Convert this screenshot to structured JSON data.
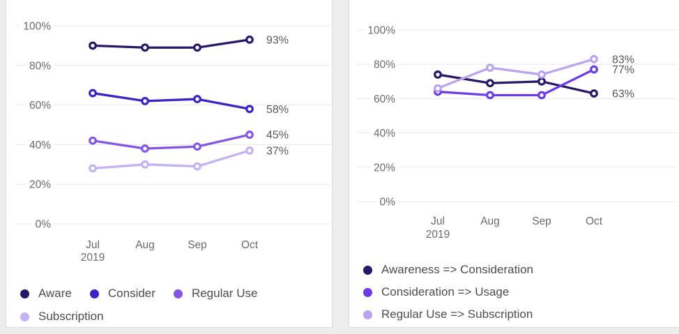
{
  "page": {
    "background": "#ededed",
    "card_background": "#ffffff",
    "card_border": "#dcdcdc",
    "grid_color": "#e8e8e8",
    "axis_text_color": "#6b6b6b",
    "value_label_color": "#595959",
    "legend_text_color": "#4d4d4d"
  },
  "chart_data": [
    {
      "id": "funnel-levels",
      "type": "line",
      "x": [
        "Jul 2019",
        "Aug",
        "Sep",
        "Oct"
      ],
      "x_tick_lines": [
        [
          "Jul",
          "2019"
        ],
        [
          "Aug"
        ],
        [
          "Sep"
        ],
        [
          "Oct"
        ]
      ],
      "ylim": [
        0,
        100
      ],
      "y_ticks": [
        100,
        80,
        60,
        40,
        20,
        0
      ],
      "y_tick_labels": [
        "100%",
        "80%",
        "60%",
        "40%",
        "20%",
        "0%"
      ],
      "grid": true,
      "legend_position": "bottom",
      "series": [
        {
          "name": "Aware",
          "color": "#271766",
          "values": [
            90,
            89,
            89,
            93
          ],
          "end_label": "93%"
        },
        {
          "name": "Consider",
          "color": "#3a25c4",
          "values": [
            66,
            62,
            63,
            58
          ],
          "end_label": "58%"
        },
        {
          "name": "Regular Use",
          "color": "#8456e3",
          "values": [
            42,
            38,
            39,
            45
          ],
          "end_label": "45%"
        },
        {
          "name": "Subscription",
          "color": "#c5b3f1",
          "values": [
            28,
            30,
            29,
            37
          ],
          "end_label": "37%"
        }
      ]
    },
    {
      "id": "funnel-conversion",
      "type": "line",
      "x": [
        "Jul 2019",
        "Aug",
        "Sep",
        "Oct"
      ],
      "x_tick_lines": [
        [
          "Jul",
          "2019"
        ],
        [
          "Aug"
        ],
        [
          "Sep"
        ],
        [
          "Oct"
        ]
      ],
      "ylim": [
        0,
        100
      ],
      "y_ticks": [
        100,
        80,
        60,
        40,
        20,
        0
      ],
      "y_tick_labels": [
        "100%",
        "80%",
        "60%",
        "40%",
        "20%",
        "0%"
      ],
      "grid": true,
      "legend_position": "bottom",
      "series": [
        {
          "name": "Awareness => Consideration",
          "color": "#271766",
          "values": [
            74,
            69,
            70,
            63
          ],
          "end_label": "63%"
        },
        {
          "name": "Consideration => Usage",
          "color": "#6c3ce4",
          "values": [
            64,
            62,
            62,
            77
          ],
          "end_label": "77%"
        },
        {
          "name": "Regular Use => Subscription",
          "color": "#baa4ef",
          "values": [
            66,
            78,
            74,
            83
          ],
          "end_label": "83%"
        }
      ]
    }
  ]
}
